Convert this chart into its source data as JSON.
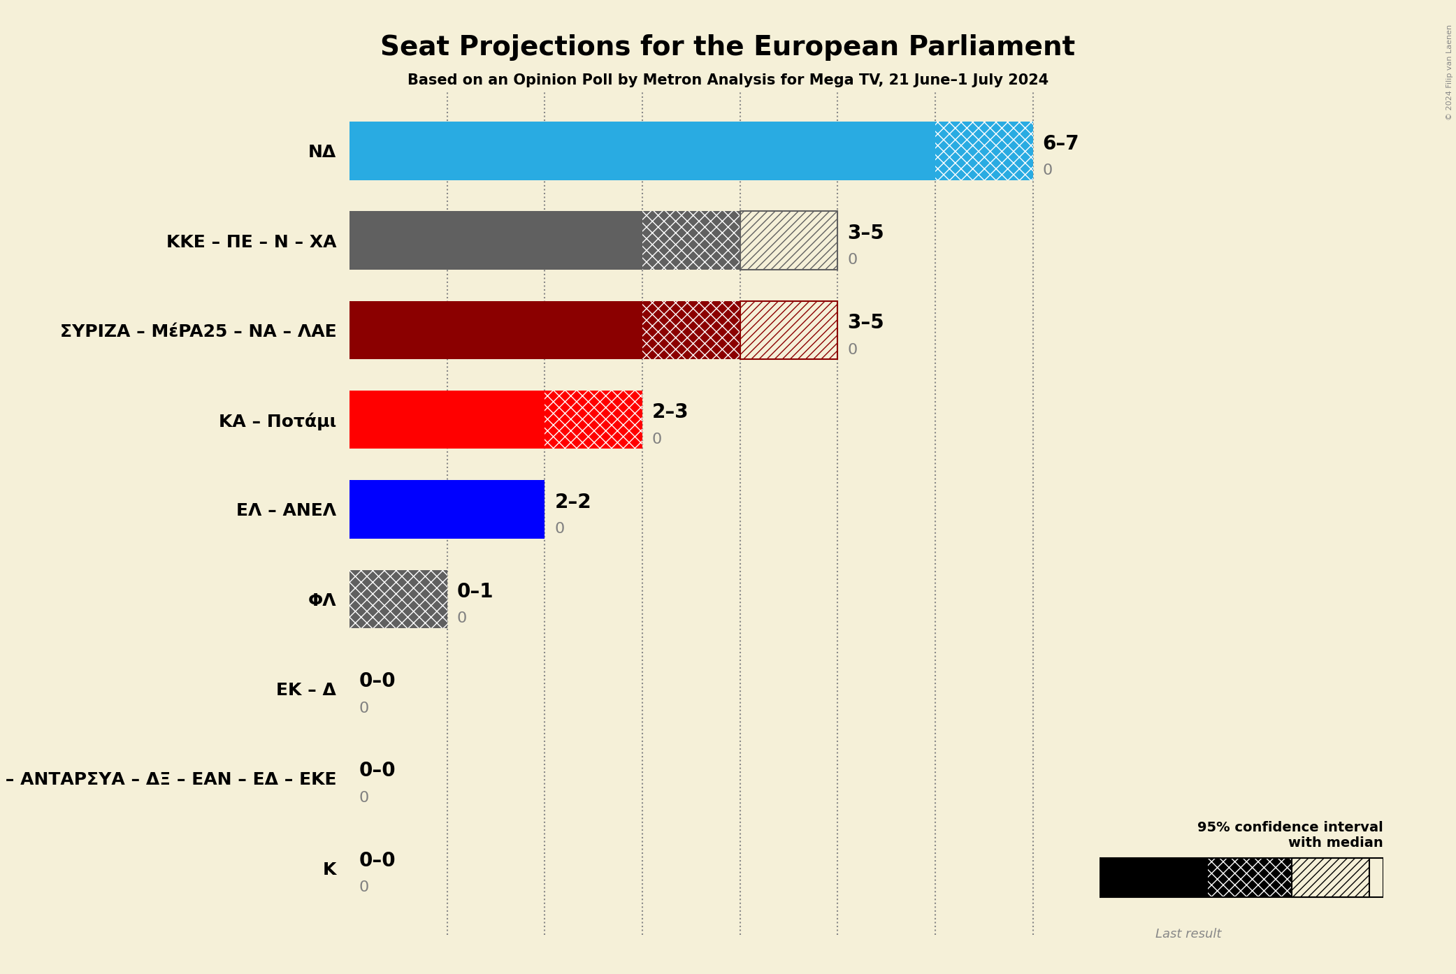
{
  "title": "Seat Projections for the European Parliament",
  "subtitle": "Based on an Opinion Poll by Metron Analysis for Mega TV, 21 June–1 July 2024",
  "copyright": "© 2024 Filip van Laenen",
  "background_color": "#f5f0d8",
  "parties": [
    "NΔ",
    "KKE – ΠE – N – XA",
    "ΣΥΡΙΖΑ – ΜέPA25 – NA – ΛΑE",
    "KA – Ποτάμι",
    "EΛ – ANEΛ",
    "ΦΛ",
    "EK – Δ",
    "Σπαρ – ANΤΑΡΣΥΑ – ΔΞ – EΑN – EΔ – EKE",
    "K"
  ],
  "colors": [
    "#29ABE2",
    "#606060",
    "#8B0000",
    "#FF0000",
    "#0000FF",
    "#606060",
    "#606060",
    "#606060",
    "#606060"
  ],
  "labels": [
    "6–7",
    "3–5",
    "3–5",
    "2–3",
    "2–2",
    "0–1",
    "0–0",
    "0–0",
    "0–0"
  ],
  "last_result_values": [
    0,
    0,
    0,
    0,
    0,
    0,
    0,
    0,
    0
  ],
  "segments": [
    {
      "solid": 6,
      "cross": 7,
      "hatch": 7
    },
    {
      "solid": 3,
      "cross": 4,
      "hatch": 5
    },
    {
      "solid": 3,
      "cross": 4,
      "hatch": 5
    },
    {
      "solid": 2,
      "cross": 3,
      "hatch": 3
    },
    {
      "solid": 2,
      "cross": 2,
      "hatch": 2
    },
    {
      "solid": 0,
      "cross": 1,
      "hatch": 1
    },
    {
      "solid": 0,
      "cross": 0,
      "hatch": 0
    },
    {
      "solid": 0,
      "cross": 0,
      "hatch": 0
    },
    {
      "solid": 0,
      "cross": 0,
      "hatch": 0
    }
  ],
  "xlim": 8.5,
  "grid_lines": [
    1,
    2,
    3,
    4,
    5,
    6,
    7
  ],
  "bar_height": 0.65
}
